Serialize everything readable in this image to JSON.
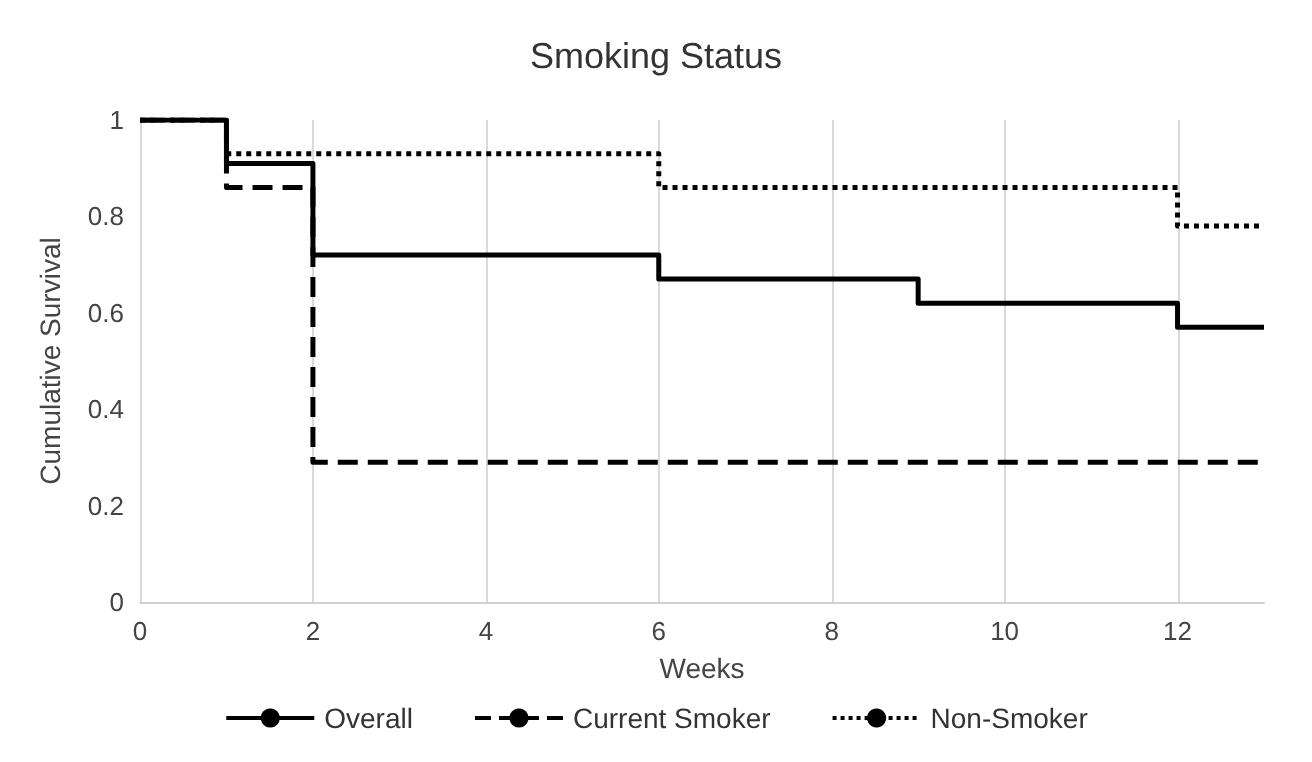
{
  "chart_data": {
    "type": "step",
    "title": "Smoking Status",
    "xlabel": "Weeks",
    "ylabel": "Cumulative Survival",
    "xlim": [
      0,
      13
    ],
    "xticks": [
      0,
      2,
      4,
      6,
      8,
      10,
      12
    ],
    "ylim": [
      0,
      1
    ],
    "yticks": [
      0,
      0.2,
      0.4,
      0.6,
      0.8,
      1
    ],
    "grid": "x",
    "legend": "bottom",
    "marker": "none",
    "series": [
      {
        "name": "Overall",
        "color": "#000000",
        "line_style": "solid",
        "x": [
          0,
          1,
          2,
          6,
          9,
          12,
          13
        ],
        "values": [
          1,
          0.91,
          0.72,
          0.67,
          0.62,
          0.57,
          0.57
        ]
      },
      {
        "name": "Current Smoker",
        "color": "#000000",
        "line_style": "dashed",
        "x": [
          0,
          1,
          2,
          13
        ],
        "values": [
          1,
          0.86,
          0.29,
          0.29
        ]
      },
      {
        "name": "Non-Smoker",
        "color": "#000000",
        "line_style": "dotted",
        "x": [
          0,
          1,
          6,
          12,
          13
        ],
        "values": [
          1,
          0.93,
          0.86,
          0.78,
          0.78
        ]
      }
    ]
  }
}
